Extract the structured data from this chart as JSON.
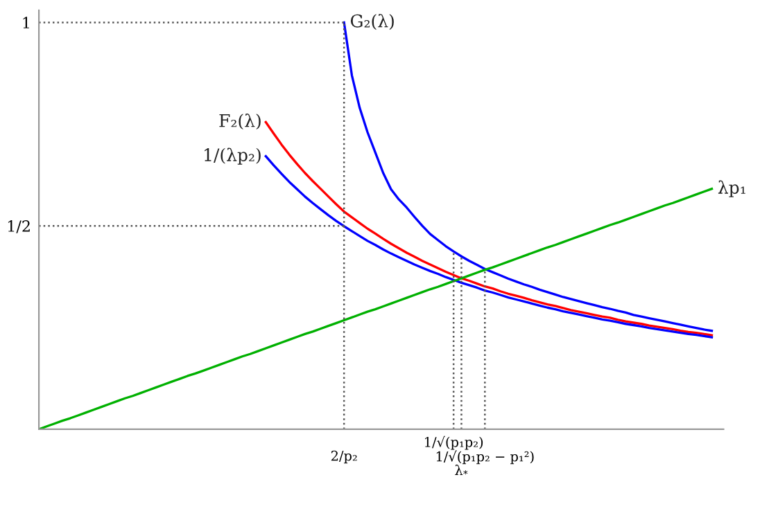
{
  "chart_data": {
    "type": "line",
    "ylim": [
      0,
      1.03
    ],
    "yticks": [
      1,
      {
        "value": 0.5,
        "label": "1/2"
      }
    ],
    "categories": [
      null,
      null,
      null,
      null,
      null,
      null,
      null,
      null,
      null,
      null,
      null,
      null,
      null,
      null,
      null,
      null,
      null,
      null,
      null,
      null,
      null,
      null,
      null,
      null,
      null,
      null,
      null,
      null,
      null,
      null,
      null,
      null,
      null,
      null,
      null,
      null,
      null,
      null,
      null,
      "2/p₂",
      null,
      null,
      null,
      null,
      null,
      null,
      null,
      null,
      null,
      null,
      null,
      null,
      null,
      "1/√(p₁p₂)",
      "λ$_{*}$",
      null,
      null,
      "1/√(p₁p₂ − p₁²)",
      null,
      null,
      null,
      null,
      null,
      null,
      null,
      null,
      null,
      null,
      null,
      null,
      null,
      null,
      null,
      null,
      null,
      null,
      null,
      null,
      null,
      null,
      null,
      null,
      null,
      null,
      null,
      null,
      null
    ],
    "grid": false,
    "legend": false,
    "marker": "none",
    "ref_lines": [
      {
        "axis": "x",
        "value": "2/p₂",
        "color": "#555555",
        "line_style": "dotted"
      },
      {
        "axis": "x",
        "value": "1/√(p₁p₂)",
        "color": "#555555",
        "line_style": "dotted"
      },
      {
        "axis": "x",
        "value": "λ$_{*}$",
        "color": "#555555",
        "line_style": "dotted"
      },
      {
        "axis": "x",
        "value": "1/√(p₁p₂ − p₁²)",
        "color": "#555555",
        "line_style": "dotted"
      }
    ],
    "series": [
      {
        "name": "G₂(λ)",
        "color": "#0000ff",
        "values": [
          null,
          null,
          null,
          null,
          null,
          null,
          null,
          null,
          null,
          null,
          null,
          null,
          null,
          null,
          null,
          null,
          null,
          null,
          null,
          null,
          null,
          null,
          null,
          null,
          null,
          null,
          null,
          null,
          null,
          null,
          null,
          null,
          null,
          null,
          null,
          null,
          null,
          null,
          null,
          1.0,
          0.87,
          0.79,
          0.73,
          0.68,
          0.63,
          0.59,
          0.565,
          0.545,
          0.522,
          0.5,
          0.48,
          0.465,
          0.45,
          0.437,
          0.425,
          0.414,
          0.404,
          0.394,
          0.386,
          0.378,
          0.37,
          0.363,
          0.356,
          0.35,
          0.343,
          0.337,
          0.331,
          0.325,
          0.32,
          0.315,
          0.31,
          0.305,
          0.3,
          0.296,
          0.291,
          0.287,
          0.281,
          0.277,
          0.273,
          0.269,
          0.265,
          0.261,
          0.257,
          0.253,
          0.249,
          0.245,
          0.242
        ]
      },
      {
        "name": "F₂(λ)",
        "color": "#ff0000",
        "values": [
          null,
          null,
          null,
          null,
          null,
          null,
          null,
          null,
          null,
          null,
          null,
          null,
          null,
          null,
          null,
          null,
          null,
          null,
          null,
          null,
          null,
          null,
          null,
          null,
          null,
          null,
          null,
          null,
          null,
          0.755,
          0.727,
          0.7,
          0.675,
          0.652,
          0.63,
          0.61,
          0.591,
          0.572,
          0.553,
          0.535,
          0.521,
          0.507,
          0.493,
          0.481,
          0.468,
          0.456,
          0.445,
          0.434,
          0.424,
          0.414,
          0.405,
          0.396,
          0.387,
          0.379,
          0.371,
          0.365,
          0.358,
          0.351,
          0.346,
          0.339,
          0.333,
          0.328,
          0.323,
          0.317,
          0.312,
          0.307,
          0.303,
          0.298,
          0.293,
          0.289,
          0.285,
          0.281,
          0.277,
          0.274,
          0.269,
          0.265,
          0.262,
          0.259,
          0.255,
          0.252,
          0.249,
          0.246,
          0.242,
          0.239,
          0.237,
          0.234,
          0.231
        ]
      },
      {
        "name": "1/(λp₂)",
        "color": "#0000ff",
        "values": [
          null,
          null,
          null,
          null,
          null,
          null,
          null,
          null,
          null,
          null,
          null,
          null,
          null,
          null,
          null,
          null,
          null,
          null,
          null,
          null,
          null,
          null,
          null,
          null,
          null,
          null,
          null,
          null,
          null,
          0.671,
          0.649,
          0.628,
          0.608,
          0.59,
          0.572,
          0.556,
          0.541,
          0.526,
          0.512,
          0.499,
          0.487,
          0.475,
          0.463,
          0.453,
          0.442,
          0.432,
          0.423,
          0.414,
          0.405,
          0.397,
          0.389,
          0.382,
          0.374,
          0.367,
          0.36,
          0.354,
          0.348,
          0.341,
          0.336,
          0.33,
          0.324,
          0.319,
          0.314,
          0.309,
          0.304,
          0.299,
          0.295,
          0.29,
          0.286,
          0.282,
          0.278,
          0.274,
          0.27,
          0.267,
          0.263,
          0.259,
          0.256,
          0.253,
          0.249,
          0.246,
          0.243,
          0.24,
          0.237,
          0.234,
          0.232,
          0.229,
          0.226
        ]
      },
      {
        "name": "λp₁",
        "color": "#00b000",
        "values": [
          0,
          0.007,
          0.014,
          0.021,
          0.027,
          0.034,
          0.041,
          0.048,
          0.055,
          0.062,
          0.069,
          0.076,
          0.082,
          0.089,
          0.096,
          0.103,
          0.11,
          0.117,
          0.124,
          0.131,
          0.137,
          0.144,
          0.151,
          0.158,
          0.165,
          0.172,
          0.179,
          0.185,
          0.192,
          0.199,
          0.206,
          0.213,
          0.22,
          0.227,
          0.234,
          0.24,
          0.247,
          0.254,
          0.261,
          0.268,
          0.275,
          0.282,
          0.289,
          0.295,
          0.302,
          0.309,
          0.316,
          0.323,
          0.33,
          0.337,
          0.344,
          0.35,
          0.357,
          0.364,
          0.371,
          0.378,
          0.385,
          0.392,
          0.398,
          0.405,
          0.412,
          0.419,
          0.426,
          0.433,
          0.44,
          0.447,
          0.453,
          0.46,
          0.467,
          0.474,
          0.481,
          0.488,
          0.495,
          0.502,
          0.508,
          0.515,
          0.522,
          0.529,
          0.536,
          0.543,
          0.55,
          0.556,
          0.563,
          0.57,
          0.577,
          0.584,
          0.591
        ]
      },
      {
        "color": "#555555",
        "line_style": "dotted",
        "values": [
          1,
          1,
          1,
          1,
          1,
          1,
          1,
          1,
          1,
          1,
          1,
          1,
          1,
          1,
          1,
          1,
          1,
          1,
          1,
          1,
          1,
          1,
          1,
          1,
          1,
          1,
          1,
          1,
          1,
          1,
          1,
          1,
          1,
          1,
          1,
          1,
          1,
          1,
          1,
          1,
          null,
          null,
          null,
          null,
          null,
          null,
          null,
          null,
          null,
          null,
          null,
          null,
          null,
          null,
          null,
          null,
          null,
          null,
          null,
          null,
          null,
          null,
          null,
          null,
          null,
          null,
          null,
          null,
          null,
          null,
          null,
          null,
          null,
          null,
          null,
          null,
          null,
          null,
          null,
          null,
          null,
          null,
          null,
          null,
          null,
          null,
          null
        ]
      },
      {
        "color": "#555555",
        "line_style": "dotted",
        "values": [
          0.5,
          0.5,
          0.5,
          0.5,
          0.5,
          0.5,
          0.5,
          0.5,
          0.5,
          0.5,
          0.5,
          0.5,
          0.5,
          0.5,
          0.5,
          0.5,
          0.5,
          0.5,
          0.5,
          0.5,
          0.5,
          0.5,
          0.5,
          0.5,
          0.5,
          0.5,
          0.5,
          0.5,
          0.5,
          0.5,
          0.5,
          0.5,
          0.5,
          0.5,
          0.5,
          0.5,
          0.5,
          0.5,
          0.5,
          0.5,
          null,
          null,
          null,
          null,
          null,
          null,
          null,
          null,
          null,
          null,
          null,
          null,
          null,
          null,
          null,
          null,
          null,
          null,
          null,
          null,
          null,
          null,
          null,
          null,
          null,
          null,
          null,
          null,
          null,
          null,
          null,
          null,
          null,
          null,
          null,
          null,
          null,
          null,
          null,
          null,
          null,
          null,
          null,
          null,
          null,
          null,
          null
        ]
      }
    ]
  }
}
